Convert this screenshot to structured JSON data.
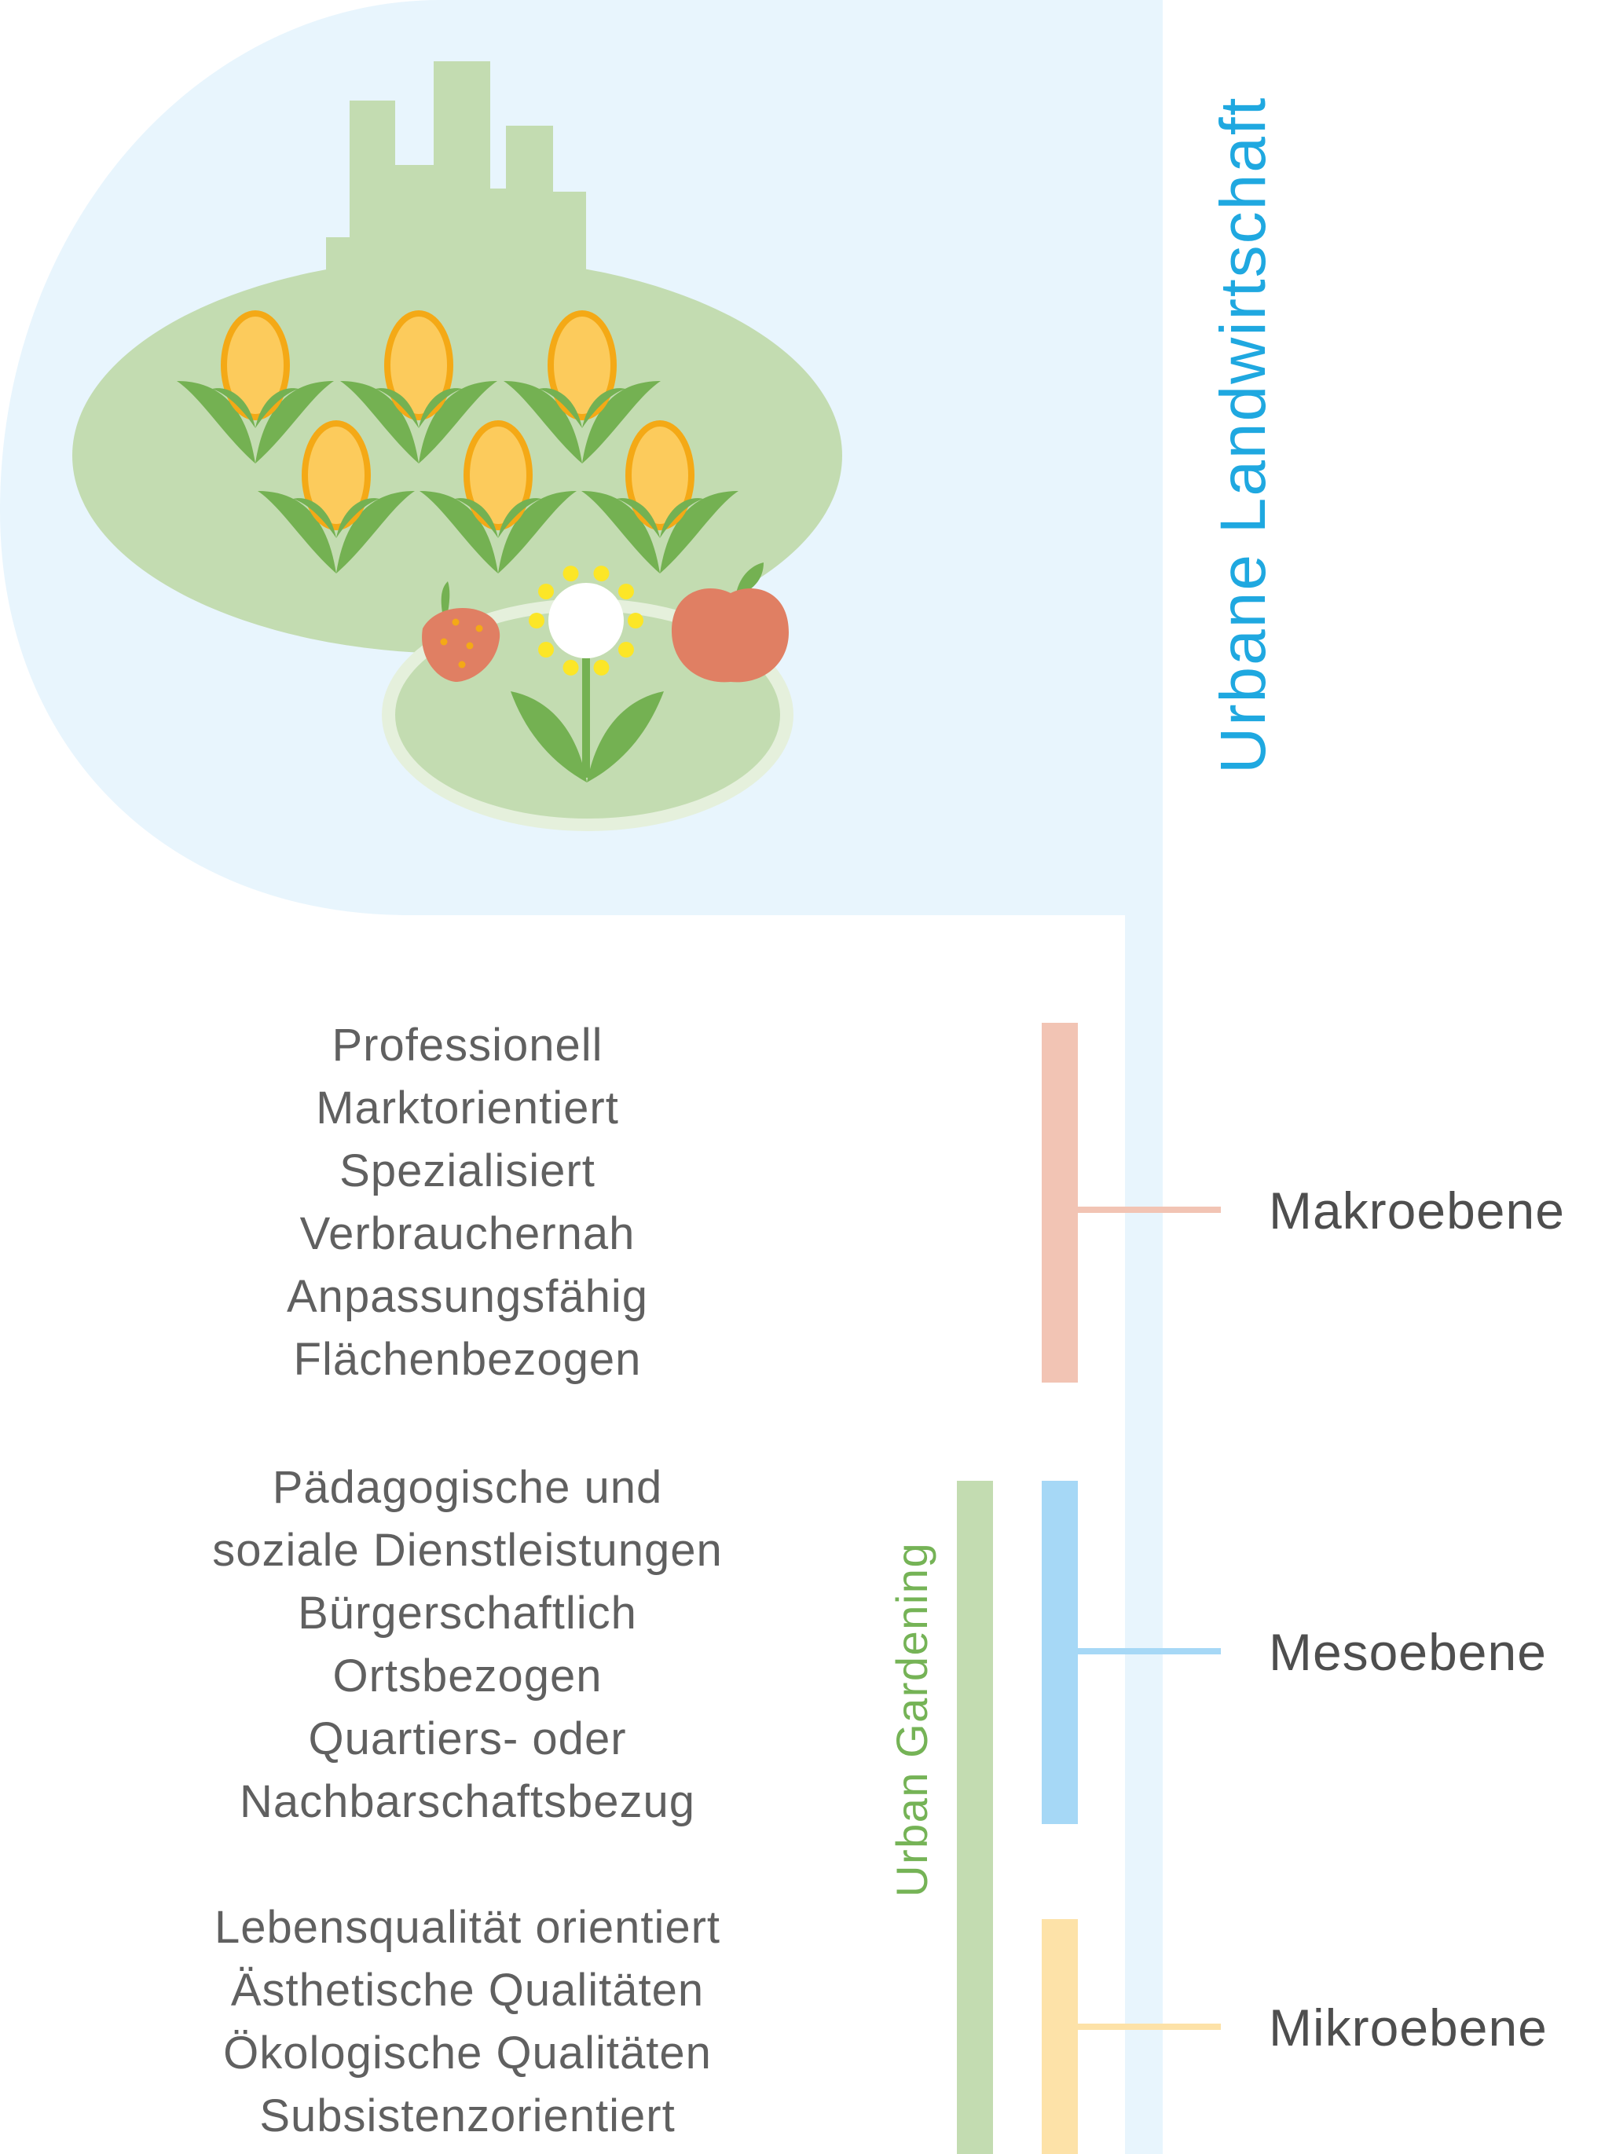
{
  "main_title": "Urbane Landwirtschaft",
  "sub_title": "Urban Gardening",
  "levels": [
    {
      "label": "Makroebene",
      "color": "#f2c4b4",
      "lines": [
        "Professionell",
        "Marktorientiert",
        "Spezialisiert",
        "Verbrauchernah",
        "Anpassungsfähig",
        "Flächenbezogen"
      ]
    },
    {
      "label": "Mesoebene",
      "color": "#a6d8f6",
      "lines": [
        "Pädagogische und",
        "soziale Dienstleistungen",
        "Bürgerschaftlich",
        "Ortsbezogen",
        "Quartiers- oder",
        "Nachbarschaftsbezug"
      ]
    },
    {
      "label": "Mikroebene",
      "color": "#fde2a8",
      "lines": [
        "Lebensqualität orientiert",
        "Ästhetische Qualitäten",
        "Ökologische Qualitäten",
        "Subsistenzorientiert"
      ]
    }
  ],
  "colors": {
    "main_band": "#e8f5fd",
    "main_title": "#1fa8e0",
    "sub_bar": "#c3dcb1",
    "sub_title": "#75b356",
    "land": "#c3dcb1",
    "leaf": "#74b152",
    "corn": "#fccb5c",
    "corn_edge": "#f4a916",
    "fruit": "#e07f63"
  }
}
